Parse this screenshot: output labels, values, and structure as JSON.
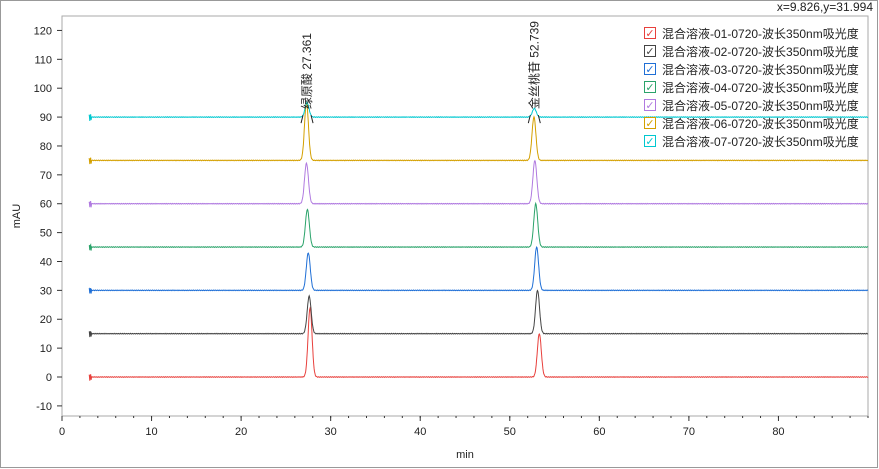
{
  "coord_readout": "x=9.826,y=31.994",
  "chart_data": {
    "type": "line",
    "xlabel": "min",
    "ylabel": "mAU",
    "xlim": [
      0,
      90
    ],
    "ylim": [
      -13.5,
      125
    ],
    "xticks": [
      0,
      10,
      20,
      30,
      40,
      50,
      60,
      70,
      80
    ],
    "yticks": [
      -10,
      0,
      10,
      20,
      30,
      40,
      50,
      60,
      70,
      80,
      90,
      100,
      110,
      120
    ],
    "legend_position": "top-right",
    "peak_labels": [
      {
        "text": "绿原酸 27.361",
        "x": 27.361
      },
      {
        "text": "金丝桃苷 52.739",
        "x": 52.739
      }
    ],
    "series": [
      {
        "name": "混合溶液-01-0720-波长350nm吸光度",
        "color": "#e8403c",
        "baseline": 0,
        "peaks": [
          [
            27.7,
            24
          ],
          [
            53.3,
            15
          ]
        ]
      },
      {
        "name": "混合溶液-02-0720-波长350nm吸光度",
        "color": "#444444",
        "baseline": 15,
        "peaks": [
          [
            27.6,
            13
          ],
          [
            53.1,
            15
          ]
        ]
      },
      {
        "name": "混合溶液-03-0720-波长350nm吸光度",
        "color": "#1f6fd6",
        "baseline": 30,
        "peaks": [
          [
            27.5,
            13
          ],
          [
            53.0,
            15
          ]
        ]
      },
      {
        "name": "混合溶液-04-0720-波长350nm吸光度",
        "color": "#2aa36a",
        "baseline": 45,
        "peaks": [
          [
            27.4,
            13
          ],
          [
            52.9,
            15
          ]
        ]
      },
      {
        "name": "混合溶液-05-0720-波长350nm吸光度",
        "color": "#b07ae0",
        "baseline": 60,
        "peaks": [
          [
            27.3,
            14
          ],
          [
            52.8,
            15
          ]
        ]
      },
      {
        "name": "混合溶液-06-0720-波长350nm吸光度",
        "color": "#d4a000",
        "baseline": 75,
        "peaks": [
          [
            27.3,
            20
          ],
          [
            52.7,
            15
          ]
        ]
      },
      {
        "name": "混合溶液-07-0720-波长350nm吸光度",
        "color": "#00c8d0",
        "baseline": 90,
        "peaks": [
          [
            27.36,
            5
          ],
          [
            52.74,
            3
          ]
        ]
      }
    ]
  }
}
